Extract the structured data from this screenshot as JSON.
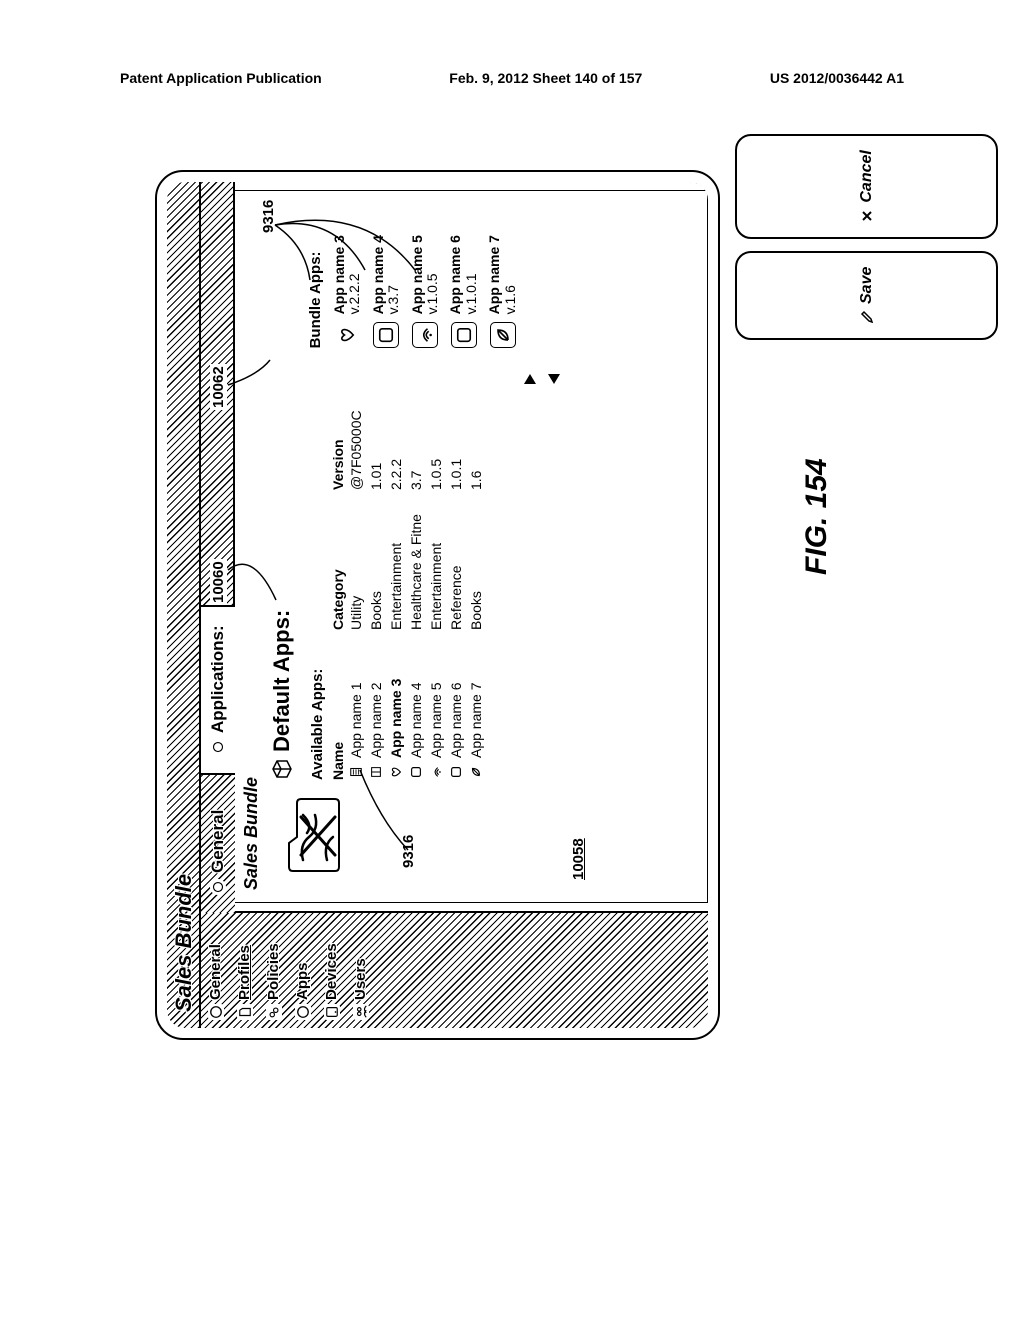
{
  "header": {
    "left": "Patent Application Publication",
    "center": "Feb. 9, 2012   Sheet 140 of 157",
    "right": "US 2012/0036442 A1"
  },
  "figure_caption": "FIG. 154",
  "window_title": "Sales Bundle",
  "sidebar": {
    "items": [
      {
        "label": "General",
        "icon": "circle"
      },
      {
        "label": "Profiles",
        "icon": "doc",
        "selected": true
      },
      {
        "label": "Policies",
        "icon": "keys"
      },
      {
        "label": "Apps",
        "icon": "circle"
      },
      {
        "label": "Devices",
        "icon": "device"
      },
      {
        "label": "Users",
        "icon": "users"
      }
    ]
  },
  "tabs": [
    {
      "label": "General",
      "icon": "circle",
      "active": false
    },
    {
      "label": "Applications:",
      "icon": "circle",
      "active": true
    }
  ],
  "profile_title": "Sales Bundle",
  "section_title": "Default Apps:",
  "available": {
    "heading": "Available Apps:",
    "columns": {
      "name": "Name",
      "category": "Category",
      "version": "Version"
    },
    "rows": [
      {
        "name": "App name 1",
        "category": "Utility",
        "version": "@7F05000C",
        "icon": "calc"
      },
      {
        "name": "App name 2",
        "category": "Books",
        "version": "1.01",
        "icon": "book"
      },
      {
        "name": "App name 3",
        "category": "Entertainment",
        "version": "2.2.2",
        "icon": "heart",
        "selected": true
      },
      {
        "name": "App name 4",
        "category": "Healthcare & Fitne",
        "version": "3.7",
        "icon": "box"
      },
      {
        "name": "App name 5",
        "category": "Entertainment",
        "version": "1.0.5",
        "icon": "wifi"
      },
      {
        "name": "App name 6",
        "category": "Reference",
        "version": "1.0.1",
        "icon": "box"
      },
      {
        "name": "App name 7",
        "category": "Books",
        "version": "1.6",
        "icon": "leaf"
      }
    ]
  },
  "bundle": {
    "heading": "Bundle Apps:",
    "items": [
      {
        "name": "App name 3",
        "version": "v.2.2.2",
        "icon": "heart"
      },
      {
        "name": "App name 4",
        "version": "v.3.7",
        "icon": "box"
      },
      {
        "name": "App name 5",
        "version": "v.1.0.5",
        "icon": "wifi"
      },
      {
        "name": "App name 6",
        "version": "v.1.0.1",
        "icon": "box"
      },
      {
        "name": "App name 7",
        "version": "v.1.6",
        "icon": "leaf"
      }
    ]
  },
  "buttons": {
    "save": "Save",
    "cancel": "Cancel"
  },
  "refs": {
    "r10060": "10060",
    "r10062": "10062",
    "r9316a": "9316",
    "r9316b": "9316",
    "r10058": "10058"
  },
  "colors": {
    "stroke": "#000000",
    "bg": "#ffffff"
  }
}
